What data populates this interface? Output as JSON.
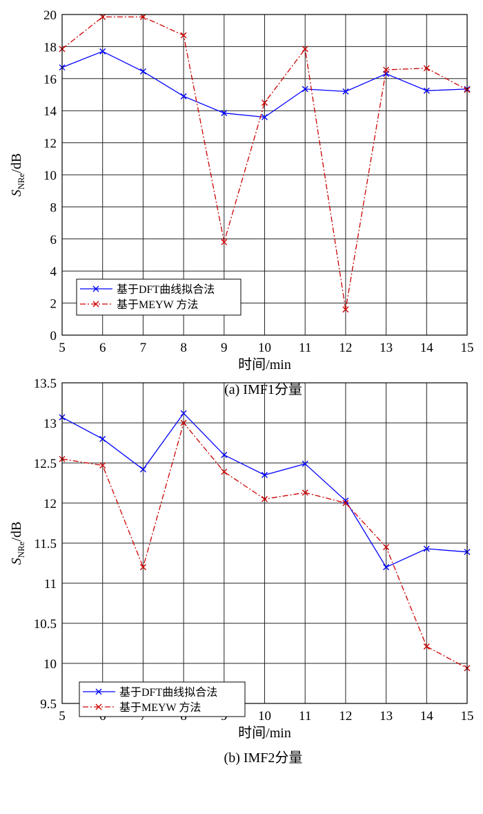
{
  "chart_data": [
    {
      "type": "line",
      "x": [
        5,
        6,
        7,
        8,
        9,
        10,
        11,
        12,
        13,
        14,
        15
      ],
      "series": [
        {
          "name": "基于DFT曲线拟合法",
          "color": "#0000ff",
          "style": "solid",
          "marker": "x",
          "values": [
            16.7,
            17.7,
            16.45,
            14.9,
            13.85,
            13.6,
            15.35,
            15.2,
            16.3,
            15.25,
            15.35
          ]
        },
        {
          "name": "基于MEYW 方法",
          "color": "#cc0000",
          "style": "dash-dot",
          "marker": "x",
          "values": [
            17.85,
            19.85,
            19.85,
            18.7,
            5.8,
            14.5,
            17.85,
            1.6,
            16.55,
            16.65,
            15.3
          ]
        }
      ],
      "xlabel": "时间/min",
      "ylabel_main": "S",
      "ylabel_sub": "NRe",
      "ylabel_unit": "/dB",
      "caption": "(a) IMF1分量",
      "xlim": [
        5,
        15
      ],
      "ylim": [
        0,
        20
      ],
      "xticks": [
        "5",
        "6",
        "7",
        "8",
        "9",
        "10",
        "11",
        "12",
        "13",
        "14",
        "15"
      ],
      "yticks": [
        "0",
        "2",
        "4",
        "6",
        "8",
        "10",
        "12",
        "14",
        "16",
        "18",
        "20"
      ],
      "grid": true,
      "legend_position": "bottom-left"
    },
    {
      "type": "line",
      "x": [
        5,
        6,
        7,
        8,
        9,
        10,
        11,
        12,
        13,
        14,
        15
      ],
      "series": [
        {
          "name": "基于DFT曲线拟合法",
          "color": "#0000ff",
          "style": "solid",
          "marker": "x",
          "values": [
            13.07,
            12.8,
            12.42,
            13.12,
            12.6,
            12.35,
            12.49,
            12.03,
            11.2,
            11.43,
            11.39
          ]
        },
        {
          "name": "基于MEYW 方法",
          "color": "#cc0000",
          "style": "dash-dot",
          "marker": "x",
          "values": [
            12.55,
            12.47,
            11.2,
            13.0,
            12.39,
            12.05,
            12.13,
            12.0,
            11.45,
            10.21,
            9.94
          ]
        }
      ],
      "xlabel": "时间/min",
      "ylabel_main": "S",
      "ylabel_sub": "NRe",
      "ylabel_unit": "/dB",
      "caption": "(b) IMF2分量",
      "xlim": [
        5,
        15
      ],
      "ylim": [
        9.5,
        13.5
      ],
      "xticks": [
        "5",
        "6",
        "7",
        "8",
        "9",
        "10",
        "11",
        "12",
        "13",
        "14",
        "15"
      ],
      "yticks": [
        "9.5",
        "10",
        "10.5",
        "11",
        "11.5",
        "12",
        "12.5",
        "13",
        "13.5"
      ],
      "grid": true,
      "legend_position": "bottom-left"
    }
  ]
}
